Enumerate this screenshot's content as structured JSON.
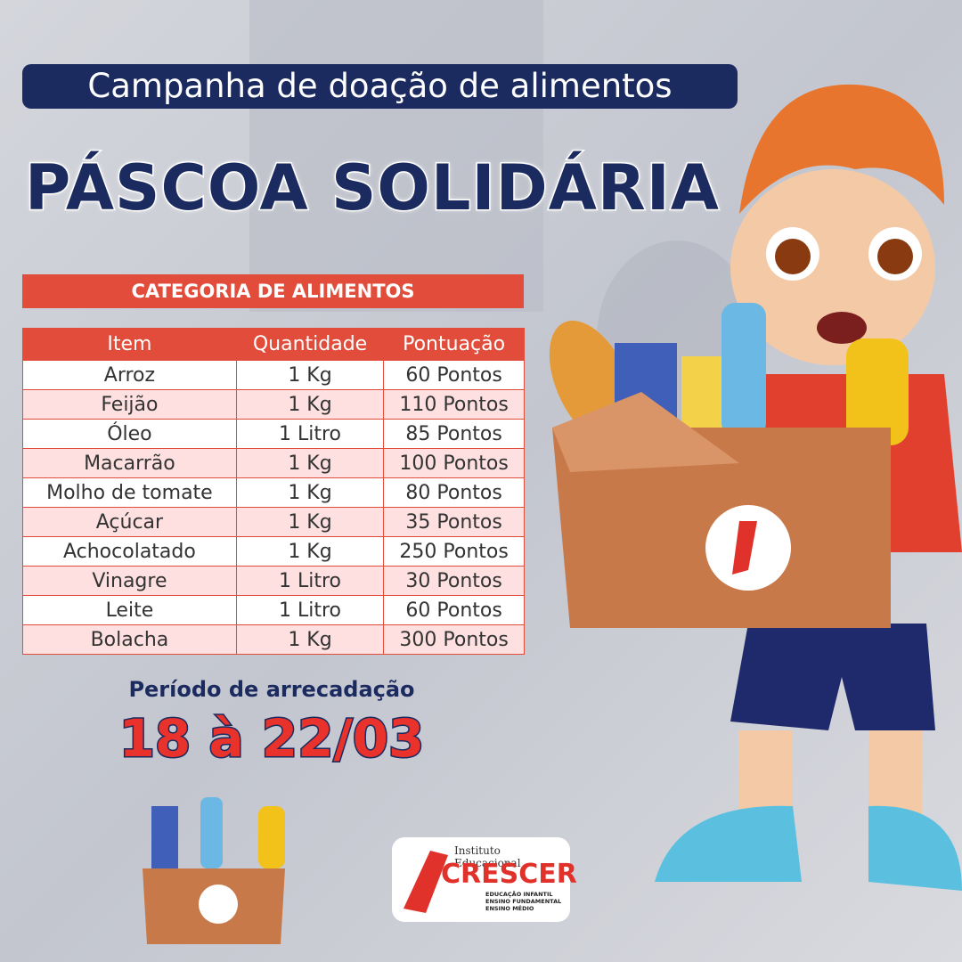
{
  "header": {
    "subtitle": "Campanha de doação de alimentos",
    "title": "PÁSCOA SOLIDÁRIA"
  },
  "table": {
    "title": "CATEGORIA DE ALIMENTOS",
    "columns": [
      "Item",
      "Quantidade",
      "Pontuação"
    ],
    "rows": [
      [
        "Arroz",
        "1 Kg",
        "60 Pontos"
      ],
      [
        "Feijão",
        "1 Kg",
        "110 Pontos"
      ],
      [
        "Óleo",
        "1 Litro",
        "85 Pontos"
      ],
      [
        "Macarrão",
        "1 Kg",
        "100 Pontos"
      ],
      [
        "Molho de tomate",
        "1 Kg",
        "80 Pontos"
      ],
      [
        "Açúcar",
        "1 Kg",
        "35 Pontos"
      ],
      [
        "Achocolatado",
        "1 Kg",
        "250 Pontos"
      ],
      [
        "Vinagre",
        "1 Litro",
        "30 Pontos"
      ],
      [
        "Leite",
        "1 Litro",
        "60 Pontos"
      ],
      [
        "Bolacha",
        "1 Kg",
        "300 Pontos"
      ]
    ]
  },
  "period": {
    "label": "Período de arrecadação",
    "dates": "18 à 22/03"
  },
  "logo": {
    "top": "Instituto Educacional",
    "name": "CRESCER",
    "lines": [
      "EDUCAÇÃO INFANTIL",
      "ENSINO FUNDAMENTAL",
      "ENSINO MÉDIO"
    ]
  }
}
